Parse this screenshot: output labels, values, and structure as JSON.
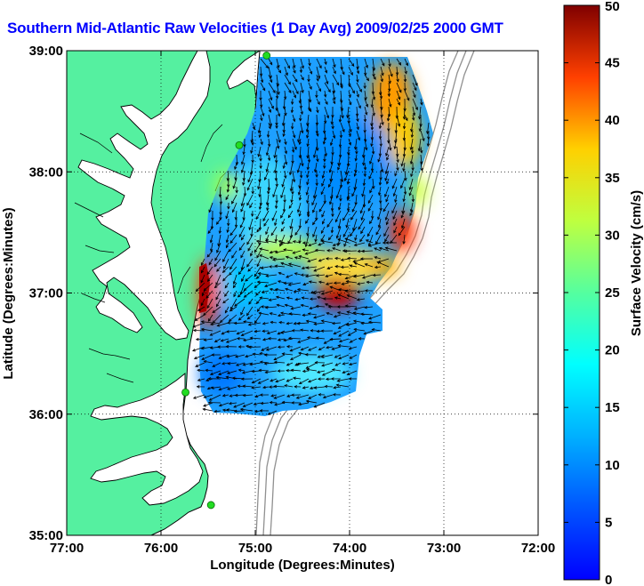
{
  "title": "Southern Mid-Atlantic Raw Velocities (1 Day Avg) 2009/02/25 2000 GMT",
  "map": {
    "x_axis": {
      "label": "Longitude (Degrees:Minutes)",
      "ticks": [
        "77:00",
        "76:00",
        "75:00",
        "74:00",
        "73:00",
        "72:00"
      ],
      "range_deg": [
        -77,
        -72
      ]
    },
    "y_axis": {
      "label": "Latitude (Degrees:Minutes)",
      "ticks": [
        "35:00",
        "36:00",
        "37:00",
        "38:00",
        "39:00"
      ],
      "range_deg": [
        35,
        39
      ]
    },
    "grid": "dotted",
    "colors": {
      "land": "#55f0a0",
      "ocean": "#ffffff",
      "coastline": "#000000",
      "bathymetry": "#909090",
      "station": "#22dd22",
      "arrows": "#000000",
      "title": "#0000ff"
    },
    "stations": [
      {
        "lon": -74.88,
        "lat": 38.96
      },
      {
        "lon": -75.17,
        "lat": 38.22
      },
      {
        "lon": -75.74,
        "lat": 36.18
      },
      {
        "lon": -75.47,
        "lat": 35.25
      }
    ]
  },
  "colorbar": {
    "label": "Surface Velocity (cm/s)",
    "ticks": [
      "0",
      "5",
      "10",
      "15",
      "20",
      "25",
      "30",
      "35",
      "40",
      "45",
      "50"
    ],
    "min": 0,
    "max": 50,
    "colormap": "jet"
  }
}
